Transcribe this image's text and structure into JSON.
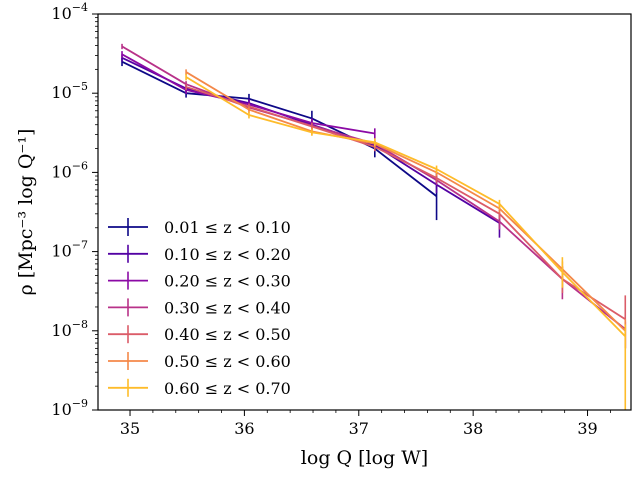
{
  "chart_data": {
    "type": "line",
    "xlabel": "log Q [log W]",
    "ylabel": "ρ [Mpc⁻³ log Q⁻¹]",
    "xlim": [
      34.72,
      39.38
    ],
    "ylim": [
      1e-09,
      0.0001
    ],
    "yscale": "log",
    "x_ticks": [
      35,
      36,
      37,
      38,
      39
    ],
    "x_tick_labels": [
      "35",
      "36",
      "37",
      "38",
      "39"
    ],
    "y_ticks": [
      1e-09,
      1e-08,
      1e-07,
      1e-06,
      1e-05,
      0.0001
    ],
    "y_tick_labels": [
      {
        "base": "10",
        "exp": "−9"
      },
      {
        "base": "10",
        "exp": "−8"
      },
      {
        "base": "10",
        "exp": "−7"
      },
      {
        "base": "10",
        "exp": "−6"
      },
      {
        "base": "10",
        "exp": "−5"
      },
      {
        "base": "10",
        "exp": "−4"
      }
    ],
    "grid": false,
    "legend_position": "lower-left",
    "series": [
      {
        "name": "0.01 ≤ z < 0.10",
        "color": "#0d0887",
        "x": [
          34.93,
          35.49,
          36.04,
          36.59,
          37.14,
          37.68
        ],
        "y": [
          2.5e-05,
          1e-05,
          8.5e-06,
          4.8e-06,
          2e-06,
          5e-07
        ],
        "err_lo": [
          2.2e-05,
          8.8e-06,
          7.5e-06,
          3.8e-06,
          1.55e-06,
          2.5e-07
        ],
        "err_hi": [
          2.8e-05,
          1.15e-05,
          9.8e-06,
          6e-06,
          2.5e-06,
          1e-06
        ]
      },
      {
        "name": "0.10 ≤ z < 0.20",
        "color": "#5302a3",
        "x": [
          34.93,
          35.49,
          36.04,
          36.59,
          37.14,
          37.68,
          38.23
        ],
        "y": [
          2.8e-05,
          1.15e-05,
          7.5e-06,
          4e-06,
          2.2e-06,
          7e-07,
          2.3e-07
        ],
        "err_lo": [
          2.5e-05,
          1e-05,
          6.5e-06,
          3.4e-06,
          1.9e-06,
          5.5e-07,
          1.5e-07
        ],
        "err_hi": [
          3.1e-05,
          1.3e-05,
          8.5e-06,
          4.7e-06,
          2.5e-06,
          8.5e-07,
          3e-07
        ]
      },
      {
        "name": "0.20 ≤ z < 0.30",
        "color": "#8b0aa5",
        "x": [
          34.93,
          35.49,
          36.04,
          36.59,
          37.14
        ],
        "y": [
          3.1e-05,
          1.1e-05,
          7.2e-06,
          4.2e-06,
          3.1e-06
        ],
        "err_lo": [
          2.8e-05,
          9.8e-06,
          6.4e-06,
          3.7e-06,
          2.6e-06
        ],
        "err_hi": [
          3.4e-05,
          1.25e-05,
          8e-06,
          4.8e-06,
          3.6e-06
        ]
      },
      {
        "name": "0.30 ≤ z < 0.40",
        "color": "#b83289",
        "x": [
          34.93,
          35.49,
          36.04,
          36.59,
          37.14,
          37.68,
          38.23,
          38.78,
          39.33
        ],
        "y": [
          3.9e-05,
          1.3e-05,
          6.6e-06,
          3.9e-06,
          2.3e-06,
          8e-07,
          2.4e-07,
          4.5e-08,
          1.05e-08
        ],
        "err_lo": [
          3.6e-05,
          1.2e-05,
          6e-06,
          3.5e-06,
          2e-06,
          7e-07,
          1.9e-07,
          2.5e-08,
          6e-09
        ],
        "err_hi": [
          4.2e-05,
          1.42e-05,
          7.2e-06,
          4.3e-06,
          2.6e-06,
          9e-07,
          2.9e-07,
          6.5e-08,
          1.3e-08
        ]
      },
      {
        "name": "0.40 ≤ z < 0.50",
        "color": "#db5c68",
        "x": [
          35.49,
          36.04,
          36.59,
          37.14,
          37.68,
          38.23,
          38.78,
          39.33
        ],
        "y": [
          1.2e-05,
          6.8e-06,
          3.8e-06,
          2.1e-06,
          8.5e-07,
          3e-07,
          4.5e-08,
          1.4e-08
        ],
        "err_lo": [
          1.1e-05,
          6.2e-06,
          3.4e-06,
          1.85e-06,
          7.5e-07,
          2.6e-07,
          3e-08,
          6e-09
        ],
        "err_hi": [
          1.3e-05,
          7.4e-06,
          4.2e-06,
          2.35e-06,
          9.5e-07,
          3.4e-07,
          6.5e-08,
          2.8e-08
        ]
      },
      {
        "name": "0.50 ≤ z < 0.60",
        "color": "#f48849",
        "x": [
          35.49,
          36.04,
          36.59,
          37.14,
          37.68,
          38.23,
          38.78,
          39.33
        ],
        "y": [
          1.85e-05,
          6.2e-06,
          3.3e-06,
          2.3e-06,
          1e-06,
          3.5e-07,
          6e-08,
          1e-08
        ],
        "err_lo": [
          1.7e-05,
          5.6e-06,
          3e-06,
          2.05e-06,
          9e-07,
          3.1e-07,
          4.5e-08,
          6e-09
        ],
        "err_hi": [
          2e-05,
          6.8e-06,
          3.7e-06,
          2.6e-06,
          1.12e-06,
          3.95e-07,
          7.5e-08,
          1.4e-08
        ]
      },
      {
        "name": "0.60 ≤ z < 0.70",
        "color": "#febc2a",
        "x": [
          35.49,
          36.04,
          36.59,
          37.14,
          37.68,
          38.23,
          38.78,
          39.33
        ],
        "y": [
          1.6e-05,
          5.3e-06,
          3.2e-06,
          2.4e-06,
          1.1e-06,
          4e-07,
          5.5e-08,
          8.5e-09
        ],
        "err_lo": [
          1.45e-05,
          4.8e-06,
          2.9e-06,
          2.15e-06,
          9.8e-07,
          3.5e-07,
          3.5e-08,
          1e-09
        ],
        "err_hi": [
          1.75e-05,
          5.8e-06,
          3.55e-06,
          2.7e-06,
          1.22e-06,
          4.5e-07,
          8.5e-08,
          1.2e-08
        ]
      }
    ]
  }
}
